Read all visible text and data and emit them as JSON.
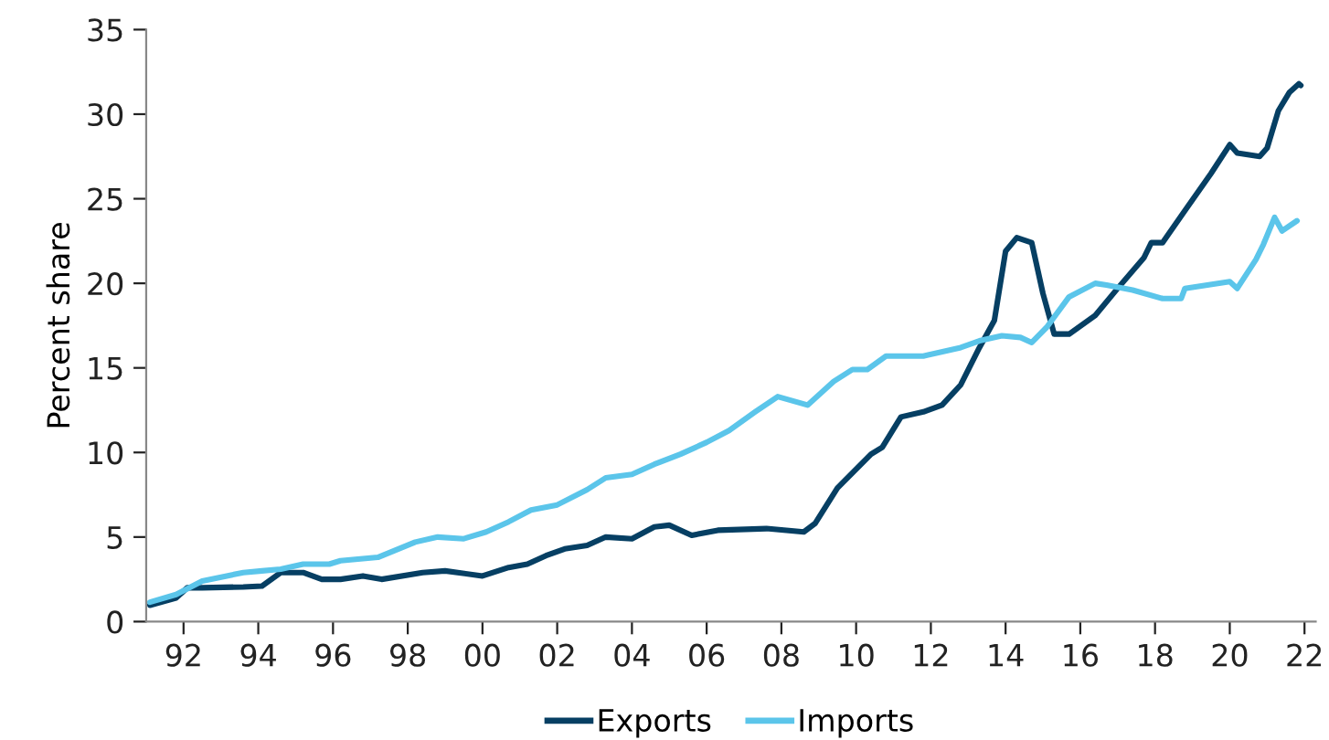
{
  "chart_data": {
    "type": "line",
    "ylabel": "Percent share",
    "legend": "bottom",
    "grid": false,
    "marker": "none",
    "line_style": "solid",
    "xlim": [
      1991,
      2022.3
    ],
    "ylim": [
      0,
      35
    ],
    "yticks": [
      0,
      5,
      10,
      15,
      20,
      25,
      30,
      35
    ],
    "xticks": [
      {
        "value": 1992,
        "label": "92"
      },
      {
        "value": 1994,
        "label": "94"
      },
      {
        "value": 1996,
        "label": "96"
      },
      {
        "value": 1998,
        "label": "98"
      },
      {
        "value": 2000,
        "label": "00"
      },
      {
        "value": 2002,
        "label": "02"
      },
      {
        "value": 2004,
        "label": "04"
      },
      {
        "value": 2006,
        "label": "06"
      },
      {
        "value": 2008,
        "label": "08"
      },
      {
        "value": 2010,
        "label": "10"
      },
      {
        "value": 2012,
        "label": "12"
      },
      {
        "value": 2014,
        "label": "14"
      },
      {
        "value": 2016,
        "label": "16"
      },
      {
        "value": 2018,
        "label": "18"
      },
      {
        "value": 2020,
        "label": "20"
      },
      {
        "value": 2022,
        "label": "22"
      }
    ],
    "series": [
      {
        "name": "Exports",
        "color": "#063f63",
        "x": [
          1991.1,
          1991.8,
          1992.1,
          1992.5,
          1993.6,
          1994.1,
          1994.6,
          1995.2,
          1995.7,
          1996.2,
          1996.8,
          1997.3,
          1998.4,
          1999.0,
          2000.0,
          2000.7,
          2001.2,
          2001.7,
          2002.2,
          2002.8,
          2003.3,
          2004.0,
          2004.6,
          2005.0,
          2005.6,
          2006.3,
          2007.6,
          2008.6,
          2008.9,
          2009.5,
          2010.4,
          2010.7,
          2011.2,
          2011.8,
          2012.3,
          2012.8,
          2013.3,
          2013.7,
          2014.0,
          2014.3,
          2014.7,
          2015.0,
          2015.3,
          2015.7,
          2016.4,
          2017.0,
          2017.7,
          2017.9,
          2018.2,
          2018.8,
          2019.5,
          2020.0,
          2020.2,
          2020.8,
          2021.0,
          2021.3,
          2021.6,
          2021.85,
          2021.9
        ],
        "values": [
          0.97,
          1.4,
          2.0,
          2.0,
          2.05,
          2.1,
          2.9,
          2.9,
          2.5,
          2.5,
          2.7,
          2.5,
          2.9,
          3.0,
          2.7,
          3.2,
          3.4,
          3.9,
          4.3,
          4.5,
          5.0,
          4.9,
          5.6,
          5.7,
          5.1,
          5.4,
          5.5,
          5.3,
          5.8,
          7.9,
          9.9,
          10.3,
          12.1,
          12.4,
          12.8,
          14.0,
          16.2,
          17.8,
          21.9,
          22.7,
          22.4,
          19.4,
          17.0,
          17.0,
          18.1,
          19.7,
          21.5,
          22.4,
          22.4,
          24.3,
          26.5,
          28.2,
          27.7,
          27.5,
          28.0,
          30.2,
          31.3,
          31.8,
          31.7
        ]
      },
      {
        "name": "Imports",
        "color": "#5bc5ea",
        "x": [
          1991.1,
          1991.8,
          1992.5,
          1993.6,
          1994.1,
          1994.6,
          1995.2,
          1995.9,
          1996.2,
          1997.2,
          1998.2,
          1998.8,
          1999.5,
          2000.1,
          2000.7,
          2001.3,
          2002.0,
          2002.8,
          2003.3,
          2004.0,
          2004.6,
          2005.3,
          2006.0,
          2006.6,
          2007.3,
          2007.9,
          2008.7,
          2009.4,
          2009.9,
          2010.3,
          2010.8,
          2011.8,
          2012.8,
          2013.3,
          2013.9,
          2014.4,
          2014.7,
          2015.1,
          2015.7,
          2016.4,
          2016.7,
          2017.4,
          2018.2,
          2018.7,
          2018.8,
          2020.0,
          2020.2,
          2020.7,
          2020.9,
          2021.2,
          2021.4,
          2021.8
        ],
        "values": [
          1.15,
          1.6,
          2.4,
          2.9,
          3.0,
          3.1,
          3.4,
          3.4,
          3.6,
          3.8,
          4.7,
          5.0,
          4.9,
          5.3,
          5.9,
          6.6,
          6.9,
          7.8,
          8.5,
          8.7,
          9.3,
          9.9,
          10.6,
          11.3,
          12.4,
          13.3,
          12.8,
          14.2,
          14.9,
          14.9,
          15.7,
          15.7,
          16.2,
          16.6,
          16.9,
          16.8,
          16.5,
          17.4,
          19.2,
          20.0,
          19.9,
          19.6,
          19.1,
          19.1,
          19.7,
          20.1,
          19.7,
          21.4,
          22.3,
          23.9,
          23.1,
          23.7
        ]
      }
    ]
  }
}
